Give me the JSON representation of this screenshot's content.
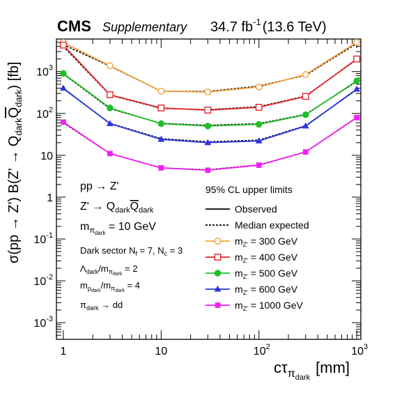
{
  "header": {
    "experiment": "CMS",
    "tag": "Supplementary",
    "lumi_value": "34.7 fb",
    "lumi_exp": "-1",
    "energy": "(13.6 TeV)"
  },
  "axes": {
    "x_main": "cτ",
    "x_sub": "π",
    "x_subsub": "dark",
    "x_unit": "[mm]",
    "y_label": "σ(pp → Z') B(Z' → Q",
    "y_sub1": "dark",
    "y_qbar": "Q",
    "y_sub2": "dark",
    "y_unit": ") [fb]"
  },
  "physics_text": {
    "line1": "pp → Z'",
    "line2_pre": "Z' → Q",
    "line2_sub": "dark",
    "line2_qbar": "Q",
    "line2_sub2": "dark",
    "line3_pre": "m",
    "line3_sub": "π",
    "line3_subsub": "dark",
    "line3_post": " = 10 GeV",
    "line4": "Dark sector N",
    "line4_sub_f": "f",
    "line4_mid": " = 7,  N",
    "line4_sub_c": "c",
    "line4_end": " = 3",
    "line5_pre": "Λ",
    "line5_sub": "dark",
    "line5_mid": "/m",
    "line5_sub2": "π",
    "line5_subsub2": "dark",
    "line5_end": " = 2",
    "line6_pre": "m",
    "line6_sub": "ρ",
    "line6_subsub": "dark",
    "line6_mid": "/m",
    "line6_sub2": "π",
    "line6_subsub2": "dark",
    "line6_end": " = 4",
    "line7_pre": "π",
    "line7_sub": "dark",
    "line7_end": " → dd"
  },
  "legend": {
    "title": "95% CL upper limits",
    "observed": "Observed",
    "expected": "Median expected",
    "mass_prefix": "m",
    "mass_sub": "Z'"
  },
  "chart_data": {
    "type": "line",
    "xscale": "log",
    "yscale": "log",
    "xlim": [
      0.85,
      1100
    ],
    "ylim": [
      0.0004,
      6000
    ],
    "x": [
      1,
      3,
      10,
      30,
      100,
      300,
      1000
    ],
    "x_ticks": [
      {
        "v": 1,
        "label": "1"
      },
      {
        "v": 10,
        "label": "10"
      },
      {
        "v": 100,
        "label": "10",
        "exp": "2"
      },
      {
        "v": 1000,
        "label": "10",
        "exp": "3"
      }
    ],
    "y_ticks": [
      {
        "v": 0.001,
        "label": "10",
        "exp": "-3"
      },
      {
        "v": 0.01,
        "label": "10",
        "exp": "-2"
      },
      {
        "v": 0.1,
        "label": "10",
        "exp": "-1"
      },
      {
        "v": 1,
        "label": "1"
      },
      {
        "v": 10,
        "label": "10"
      },
      {
        "v": 100,
        "label": "10",
        "exp": "2"
      },
      {
        "v": 1000,
        "label": "10",
        "exp": "3"
      }
    ],
    "series": [
      {
        "name": "= 300 GeV",
        "color": "#f7a03c",
        "marker": "circle-open",
        "observed": [
          5000,
          1380,
          340,
          325,
          430,
          850,
          5000
        ],
        "expected": [
          4400,
          1350,
          340,
          335,
          450,
          820,
          4700
        ]
      },
      {
        "name": "= 400 GeV",
        "color": "#e8262a",
        "marker": "square-open",
        "observed": [
          4300,
          280,
          135,
          120,
          140,
          255,
          2000
        ],
        "expected": [
          4000,
          275,
          132,
          123,
          145,
          260,
          1950
        ]
      },
      {
        "name": "= 500 GeV",
        "color": "#1fbf26",
        "marker": "circle-filled",
        "observed": [
          900,
          135,
          57,
          50,
          55,
          93,
          600
        ],
        "expected": [
          880,
          130,
          58,
          52,
          57,
          95,
          580
        ]
      },
      {
        "name": "= 600 GeV",
        "color": "#2a35e0",
        "marker": "triangle-filled",
        "observed": [
          400,
          57,
          24,
          20,
          22,
          50,
          380
        ],
        "expected": [
          390,
          58,
          25,
          21,
          23,
          51,
          370
        ]
      },
      {
        "name": "= 1000 GeV",
        "color": "#f21ff2",
        "marker": "square-filled",
        "observed": [
          62,
          11,
          5,
          4.4,
          5.8,
          12,
          80
        ],
        "expected": [
          60,
          11,
          5,
          4.5,
          5.9,
          12,
          79
        ]
      }
    ]
  }
}
